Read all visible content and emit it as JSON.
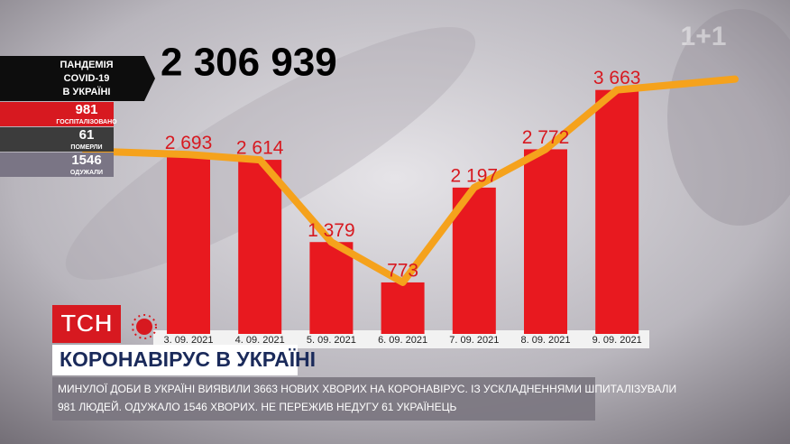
{
  "channel_logo": "1+1",
  "panel": {
    "title_lines": [
      "ПАНДЕМІЯ",
      "COVID-19",
      "В УКРАЇНІ"
    ],
    "stats": [
      {
        "value": 981,
        "label": "ГОСПІТАЛІЗОВАНО"
      },
      {
        "value": 61,
        "label": "ПОМЕРЛИ"
      },
      {
        "value": 1546,
        "label": "ОДУЖАЛИ"
      }
    ]
  },
  "total": "2 306 939",
  "logo": "ТСН",
  "headline": "КОРОНАВІРУС В УКРАЇНІ",
  "ticker": [
    "МИНУЛОЇ ДОБИ В УКРАЇНІ ВИЯВИЛИ 3663 НОВИХ ХВОРИХ НА КОРОНАВІРУС. ІЗ УСКЛАДНЕННЯМИ ШПИТАЛІЗУВАЛИ",
    "981 ЛЮДЕЙ. ОДУЖАЛО 1546 ХВОРИХ. НЕ ПЕРЕЖИВ НЕДУГУ 61 УКРАЇНЕЦЬ"
  ],
  "chart_data": {
    "type": "bar",
    "categories": [
      "3. 09. 2021",
      "4. 09. 2021",
      "5. 09. 2021",
      "6. 09. 2021",
      "7. 09. 2021",
      "8. 09. 2021",
      "9. 09. 2021"
    ],
    "values": [
      2693,
      2614,
      1379,
      773,
      2197,
      2772,
      3663
    ],
    "value_labels": [
      "2 693",
      "2 614",
      "1 379",
      "773",
      "2 197",
      "2 772",
      "3 663"
    ],
    "color": "#e8191f",
    "line_color": "#f5a21c",
    "ylim": [
      0,
      5000
    ]
  }
}
